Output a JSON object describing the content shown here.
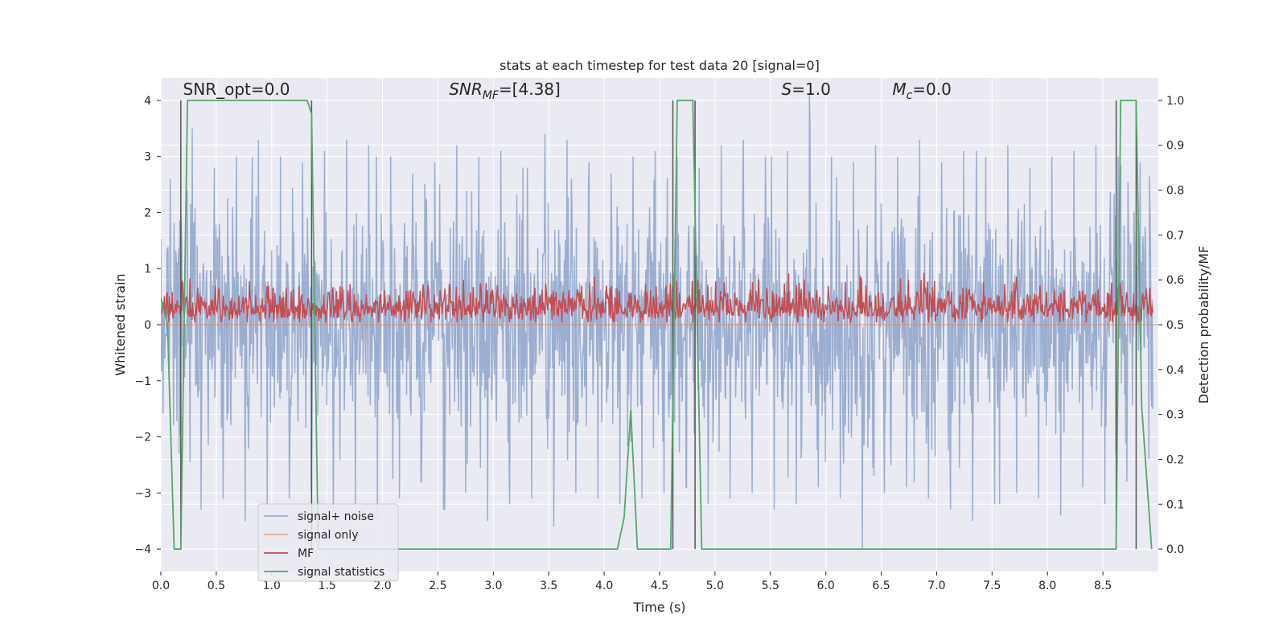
{
  "chart_data": {
    "type": "line",
    "title": "stats at each timestep for test data 20 [signal=0]",
    "xlabel": "Time (s)",
    "ylabel": "Whitened strain",
    "ylabel_right": "Detection probability/MF",
    "xlim": [
      0.0,
      9.0
    ],
    "ylim": [
      -4.4,
      4.4
    ],
    "ylim_right": [
      -0.05,
      1.05
    ],
    "x_ticks": [
      0.0,
      0.5,
      1.0,
      1.5,
      2.0,
      2.5,
      3.0,
      3.5,
      4.0,
      4.5,
      5.0,
      5.5,
      6.0,
      6.5,
      7.0,
      7.5,
      8.0,
      8.5
    ],
    "x_tick_labels": [
      "0.0",
      "0.5",
      "1.0",
      "1.5",
      "2.0",
      "2.5",
      "3.0",
      "3.5",
      "4.0",
      "4.5",
      "5.0",
      "5.5",
      "6.0",
      "6.5",
      "7.0",
      "7.5",
      "8.0",
      "8.5"
    ],
    "y_ticks": [
      -4,
      -3,
      -2,
      -1,
      0,
      1,
      2,
      3,
      4
    ],
    "y_tick_labels": [
      "−4",
      "−3",
      "−2",
      "−1",
      "0",
      "1",
      "2",
      "3",
      "4"
    ],
    "y_right_ticks": [
      0.0,
      0.1,
      0.2,
      0.3,
      0.4,
      0.5,
      0.6,
      0.7,
      0.8,
      0.9,
      1.0
    ],
    "y_right_tick_labels": [
      "0.0",
      "0.1",
      "0.2",
      "0.3",
      "0.4",
      "0.5",
      "0.6",
      "0.7",
      "0.8",
      "0.9",
      "1.0"
    ],
    "grid": true,
    "annotations": [
      {
        "text": "SNR_opt=0.0",
        "x": 0.2,
        "y": 4.1
      },
      {
        "text": "SNR_MF=[4.38]",
        "x": 2.6,
        "y": 4.1
      },
      {
        "text": "S=1.0",
        "x": 5.6,
        "y": 4.1
      },
      {
        "text": "M_c=0.0",
        "x": 6.6,
        "y": 4.1
      }
    ],
    "legend": {
      "location": "lower left",
      "entries": [
        "signal+ noise",
        "signal only",
        "MF",
        "signal statistics"
      ]
    },
    "series": [
      {
        "name": "signal+ noise",
        "axis": "left",
        "color": "#4c72b0",
        "description": "whitened strain noise trace spanning the full time axis",
        "envelope_upper": [
          2.6,
          3.5,
          2.8,
          3.0,
          3.3,
          3.0,
          2.9,
          3.1,
          3.3,
          3.2,
          3.0,
          2.7,
          2.9,
          3.2,
          3.0,
          3.1,
          2.8,
          3.4,
          3.3,
          2.9,
          2.7,
          3.0,
          3.1,
          3.0,
          2.8,
          3.2,
          2.9,
          3.3,
          3.0,
          3.1,
          4.1,
          3.0,
          2.9,
          3.2,
          3.0,
          3.3,
          2.9,
          3.1,
          3.0,
          3.2,
          2.8,
          3.0,
          3.1,
          3.2,
          3.0,
          2.9
        ],
        "envelope_lower": [
          -2.3,
          -3.3,
          -3.1,
          -3.5,
          -3.2,
          -3.1,
          -3.0,
          -3.3,
          -2.9,
          -3.2,
          -3.4,
          -3.1,
          -2.8,
          -3.3,
          -3.0,
          -3.5,
          -3.2,
          -3.1,
          -3.6,
          -3.0,
          -3.1,
          -3.2,
          -3.1,
          -3.0,
          -2.9,
          -3.2,
          -3.1,
          -3.0,
          -3.3,
          -3.2,
          -2.9,
          -3.1,
          -4.0,
          -3.0,
          -2.9,
          -3.1,
          -3.3,
          -3.5,
          -3.2,
          -3.0,
          -3.1,
          -3.4,
          -2.9,
          -3.2,
          -2.8,
          -2.4
        ]
      },
      {
        "name": "signal only",
        "axis": "left",
        "color": "#dd8452",
        "x": [
          0.0,
          9.0
        ],
        "y": [
          0.0,
          0.0
        ]
      },
      {
        "name": "MF",
        "axis": "right",
        "color": "#c44e52",
        "description": "matched-filter output fluctuating between about 0.5 and 0.64",
        "baseline": 0.5,
        "typical_peak": 0.6,
        "max_peak": 0.63
      },
      {
        "name": "signal statistics",
        "axis": "right",
        "color": "#55a868",
        "x": [
          0.0,
          0.06,
          0.12,
          0.18,
          0.24,
          0.3,
          0.6,
          0.9,
          1.2,
          1.32,
          1.36,
          1.42,
          1.5,
          2.0,
          3.0,
          4.0,
          4.12,
          4.18,
          4.24,
          4.3,
          4.36,
          4.6,
          4.66,
          4.72,
          4.8,
          4.88,
          4.96,
          5.5,
          6.5,
          7.5,
          8.0,
          8.62,
          8.66,
          8.7,
          8.8,
          8.85,
          8.94
        ],
        "y": [
          0.56,
          0.5,
          0.0,
          0.0,
          1.0,
          1.0,
          1.0,
          1.0,
          1.0,
          1.0,
          0.97,
          0.0,
          0.0,
          0.0,
          0.0,
          0.0,
          0.0,
          0.07,
          0.31,
          0.0,
          0.0,
          0.0,
          1.0,
          1.0,
          1.0,
          0.0,
          0.0,
          0.0,
          0.0,
          0.0,
          0.0,
          0.0,
          1.0,
          1.0,
          1.0,
          0.32,
          0.0
        ]
      }
    ],
    "vertical_lines": {
      "color": "#555555",
      "x": [
        0.18,
        1.36,
        4.62,
        4.82,
        8.62,
        8.8
      ]
    }
  }
}
